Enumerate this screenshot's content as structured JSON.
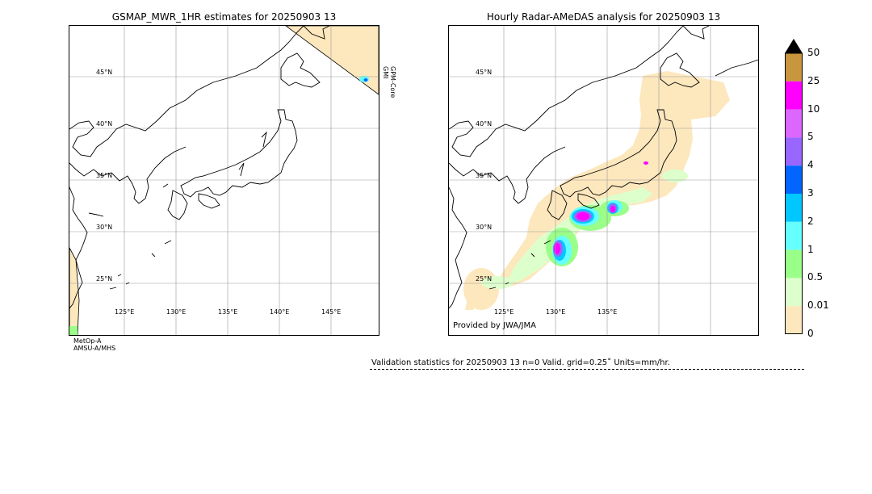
{
  "left_panel": {
    "title": "GSMAP_MWR_1HR estimates for 20250903 13",
    "lat_labels": [
      "45°N",
      "40°N",
      "35°N",
      "30°N",
      "25°N"
    ],
    "lon_labels": [
      "125°E",
      "130°E",
      "135°E",
      "140°E",
      "145°E"
    ],
    "satellite_bottom": "MetOp-A\nAMSU-A/MHS",
    "satellite_right": "GPM-Core\nGMI"
  },
  "right_panel": {
    "title": "Hourly Radar-AMeDAS analysis for 20250903 13",
    "lat_labels": [
      "45°N",
      "40°N",
      "35°N",
      "30°N",
      "25°N"
    ],
    "lon_labels": [
      "125°E",
      "130°E",
      "135°E"
    ],
    "credit": "Provided by JWA/JMA"
  },
  "colorbar": {
    "ticks": [
      "50",
      "25",
      "10",
      "5",
      "4",
      "3",
      "2",
      "1",
      "0.5",
      "0.01",
      "0"
    ],
    "colors": [
      "#c8963c",
      "#ff00ff",
      "#dd66ff",
      "#9966ff",
      "#0066ff",
      "#00c8ff",
      "#66ffff",
      "#99ff88",
      "#ddffcc",
      "#fde7bd"
    ],
    "extend_color": "#000000"
  },
  "validation": {
    "text": "Validation statistics for 20250903 13  n=0 Valid. grid=0.25˚ Units=mm/hr."
  }
}
